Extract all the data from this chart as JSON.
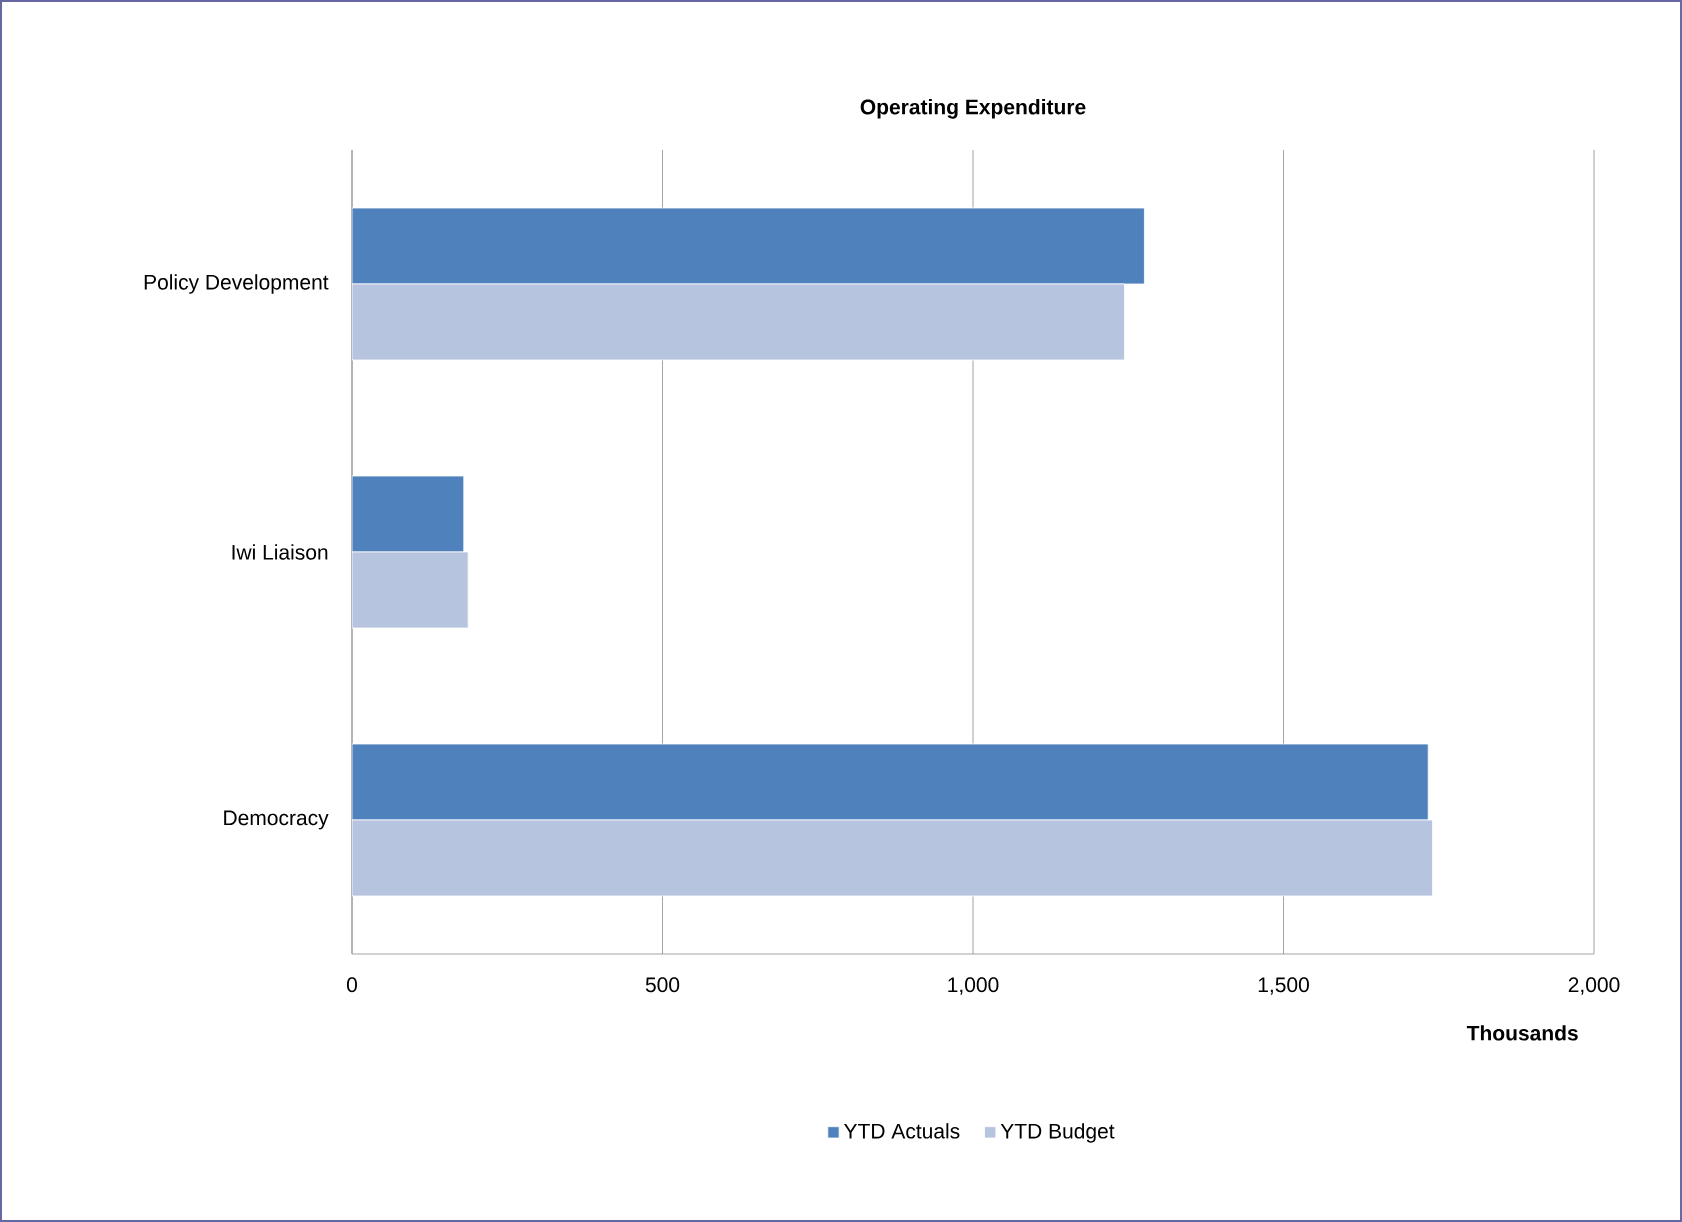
{
  "chart_data": {
    "type": "bar",
    "orientation": "horizontal",
    "title": "Operating Expenditure",
    "xlabel": "Thousands",
    "categories": [
      "Policy Development",
      "Iwi Liaison",
      "Democracy"
    ],
    "series": [
      {
        "name": "YTD Actuals",
        "color": "#4f81bd",
        "values": [
          1276,
          180,
          1733
        ]
      },
      {
        "name": "YTD Budget",
        "color": "#b7c4df",
        "values": [
          1244,
          187,
          1740
        ]
      }
    ],
    "xlim": [
      0,
      2000
    ],
    "xticks": [
      0,
      {
        "value": 500,
        "label": "500"
      },
      {
        "value": 1000,
        "label": "1,000"
      },
      {
        "value": 1500,
        "label": "1,500"
      },
      {
        "value": 2000,
        "label": "2,000"
      }
    ],
    "grid": "x",
    "legend": "bottom"
  }
}
